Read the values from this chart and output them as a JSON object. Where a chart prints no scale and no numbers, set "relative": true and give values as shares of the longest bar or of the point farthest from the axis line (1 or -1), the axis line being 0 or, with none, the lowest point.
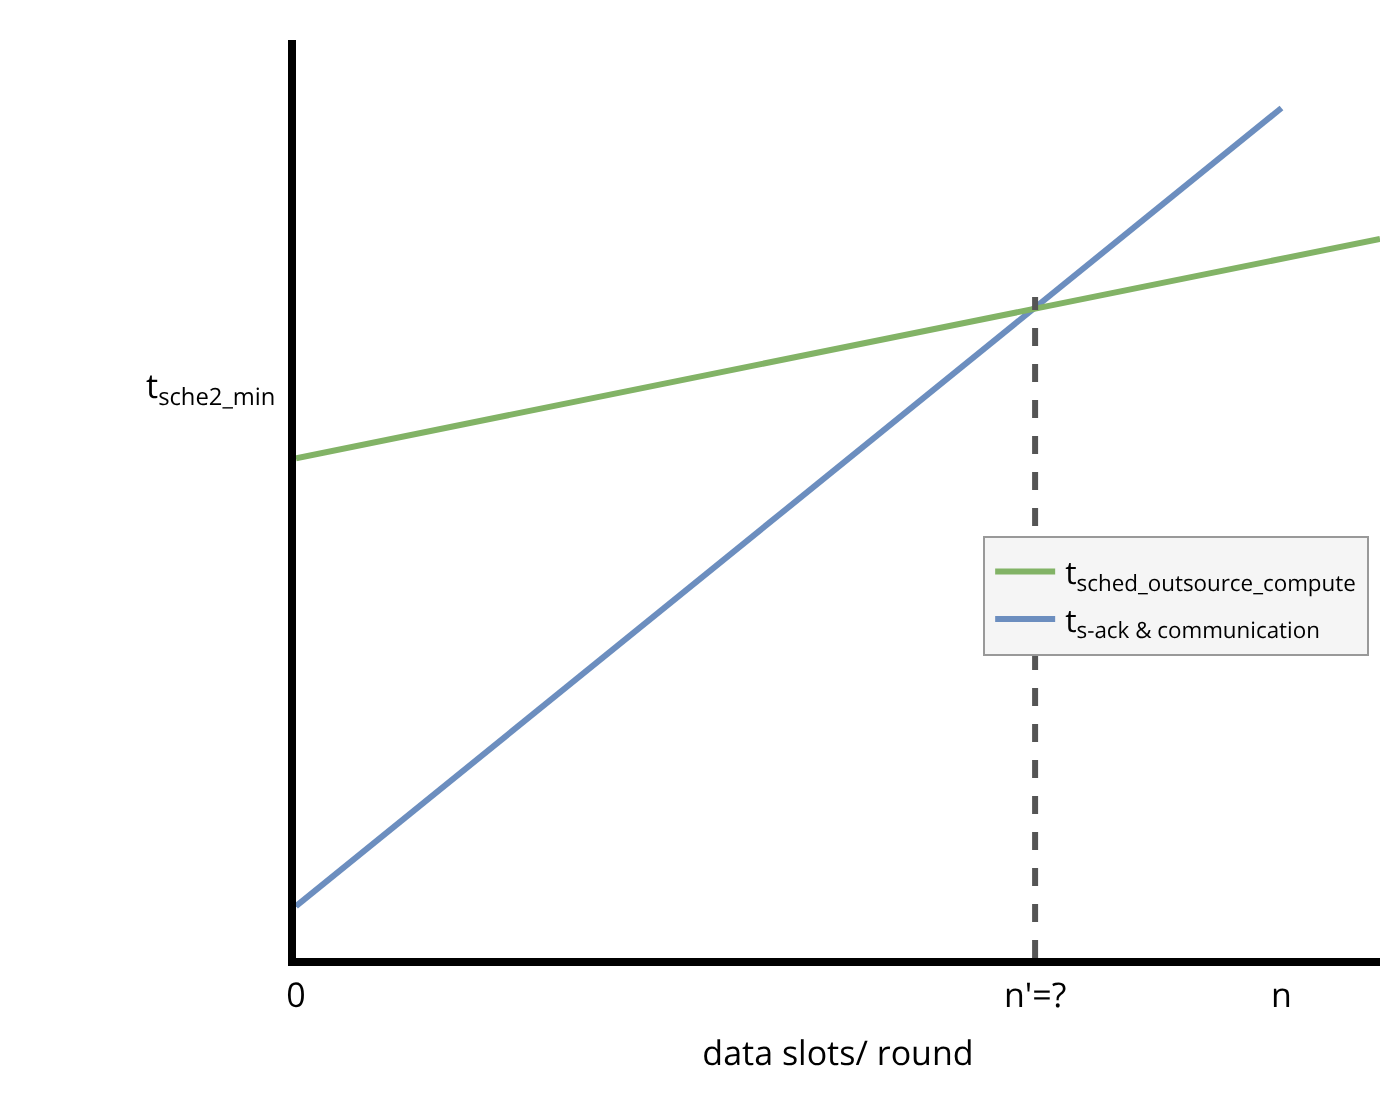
{
  "chart_data": {
    "type": "line",
    "relative": true,
    "xlabel": "data slots/ round",
    "ylabel": "t$_{sche2_min}$",
    "categories": [
      "0",
      null,
      null,
      null,
      null,
      null,
      null,
      null,
      null,
      null,
      null,
      null,
      null,
      null,
      null,
      "n'=?",
      null,
      null,
      null,
      null,
      "n",
      null,
      null
    ],
    "series": [
      {
        "name": "t$_{s-ack & communication}$",
        "color": "#6c8ebf",
        "values": [
          0.061,
          null,
          null,
          null,
          null,
          null,
          null,
          null,
          null,
          null,
          null,
          null,
          null,
          null,
          null,
          null,
          null,
          null,
          null,
          null,
          1,
          null,
          null
        ]
      },
      {
        "name": "t$_{sched_outsource_compute}$",
        "color": "#82b366",
        "values": [
          0.588,
          null,
          null,
          null,
          null,
          null,
          null,
          null,
          null,
          null,
          null,
          null,
          null,
          null,
          null,
          null,
          null,
          null,
          null,
          null,
          null,
          null,
          0.846
        ]
      }
    ],
    "ref_lines": [
      {
        "axis": "x",
        "value": "n'=?",
        "color": "#555555",
        "line_style": "dashed"
      }
    ],
    "grid": false,
    "legend": "right",
    "marker": "none",
    "line_style": "solid"
  }
}
